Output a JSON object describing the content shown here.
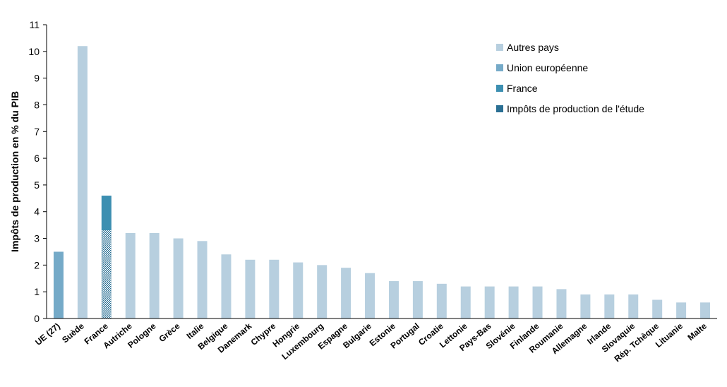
{
  "colors": {
    "autres_pays": "#b7cfdf",
    "union_europeenne": "#75aac8",
    "france": "#3c8fb1",
    "impots_etude": "#2a6f93"
  },
  "chart_data": {
    "type": "bar",
    "ylabel": "Impôts de production en % du PIB",
    "ylim": [
      0,
      11
    ],
    "yticks": [
      0,
      1,
      2,
      3,
      4,
      5,
      6,
      7,
      8,
      9,
      10,
      11
    ],
    "grid": false,
    "legend_position": "top-right",
    "legend": [
      {
        "label": "Autres pays",
        "color_key": "autres_pays"
      },
      {
        "label": "Union européenne",
        "color_key": "union_europeenne"
      },
      {
        "label": "France",
        "color_key": "france"
      },
      {
        "label": "Impôts de production de l'étude",
        "color_key": "impots_etude"
      }
    ],
    "categories": [
      "UE (27)",
      "Suède",
      "France",
      "Autriche",
      "Pologne",
      "Grèce",
      "Italie",
      "Belgique",
      "Danemark",
      "Chypre",
      "Hongrie",
      "Luxembourg",
      "Espagne",
      "Bulgarie",
      "Estonie",
      "Portugal",
      "Croatie",
      "Lettonie",
      "Pays-Bas",
      "Slovénie",
      "Finlande",
      "Roumanie",
      "Allemagne",
      "Irlande",
      "Slovaquie",
      "Rép. Tchèque",
      "Lituanie",
      "Malte"
    ],
    "values": [
      2.5,
      10.2,
      4.6,
      3.2,
      3.2,
      3.0,
      2.9,
      2.4,
      2.2,
      2.2,
      2.1,
      2.0,
      1.9,
      1.7,
      1.4,
      1.4,
      1.3,
      1.2,
      1.2,
      1.2,
      1.2,
      1.1,
      0.9,
      0.9,
      0.9,
      0.7,
      0.6,
      0.6
    ],
    "groups": [
      "union_europeenne",
      "autres_pays",
      "france",
      "autres_pays",
      "autres_pays",
      "autres_pays",
      "autres_pays",
      "autres_pays",
      "autres_pays",
      "autres_pays",
      "autres_pays",
      "autres_pays",
      "autres_pays",
      "autres_pays",
      "autres_pays",
      "autres_pays",
      "autres_pays",
      "autres_pays",
      "autres_pays",
      "autres_pays",
      "autres_pays",
      "autres_pays",
      "autres_pays",
      "autres_pays",
      "autres_pays",
      "autres_pays",
      "autres_pays",
      "autres_pays"
    ],
    "france_impots_etude": 3.3
  }
}
